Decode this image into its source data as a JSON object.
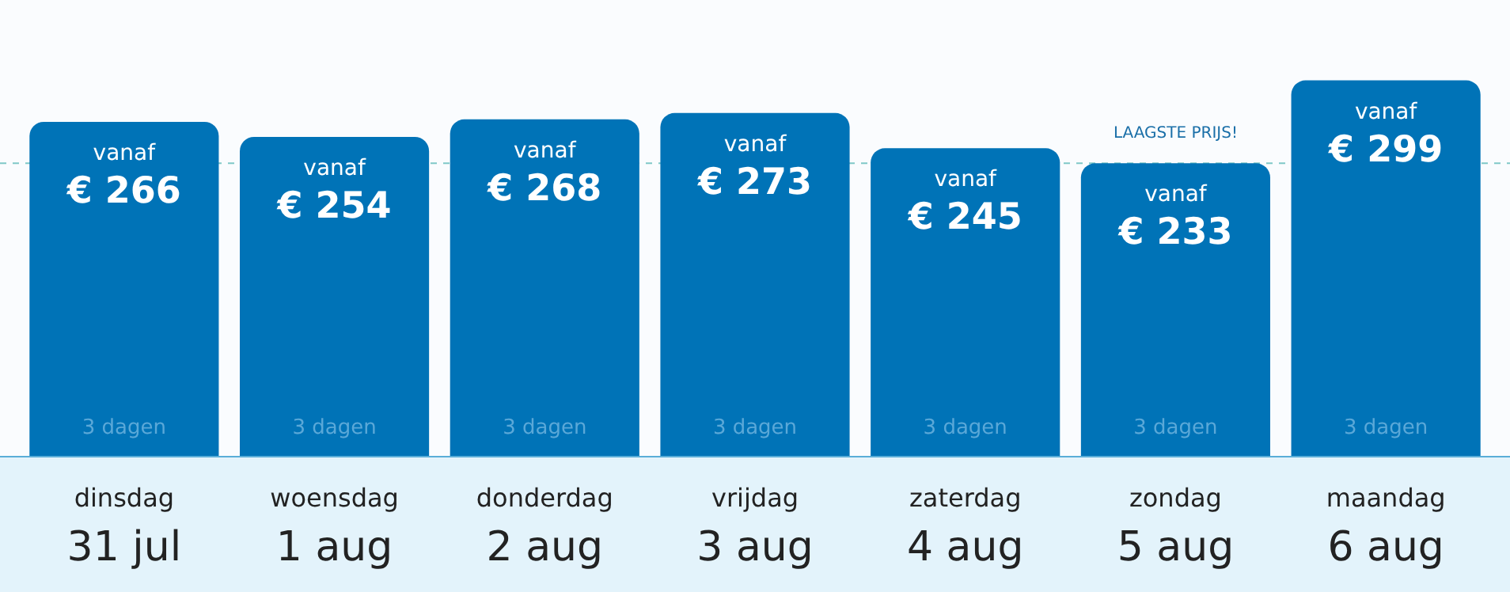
{
  "chart_data": {
    "type": "bar",
    "categories": [
      "dinsdag\n31 jul",
      "woensdag\n1 aug",
      "donderdag\n2 aug",
      "vrijdag\n3 aug",
      "zaterdag\n4 aug",
      "zondag\n5 aug",
      "maandag\n6 aug"
    ],
    "values": [
      266,
      254,
      268,
      273,
      245,
      233,
      299
    ],
    "color": "#0073b7",
    "value_labels": [
      "vanaf\n€ 266",
      "vanaf\n€ 254",
      "vanaf\n€ 268",
      "vanaf\n€ 273",
      "vanaf\n€ 245",
      "vanaf\n€ 233",
      "vanaf\n€ 299"
    ],
    "tick_labels": "x",
    "legend": false,
    "ref_lines": [
      {
        "axis": "y",
        "value": 233,
        "label": null,
        "color": "#7fc8c8",
        "line_style": "dashed"
      }
    ],
    "annotations": [
      "LAAGSTE PRIJS!",
      "3 dagen",
      "3 dagen",
      "3 dagen",
      "3 dagen",
      "3 dagen",
      "3 dagen",
      "3 dagen"
    ]
  }
}
